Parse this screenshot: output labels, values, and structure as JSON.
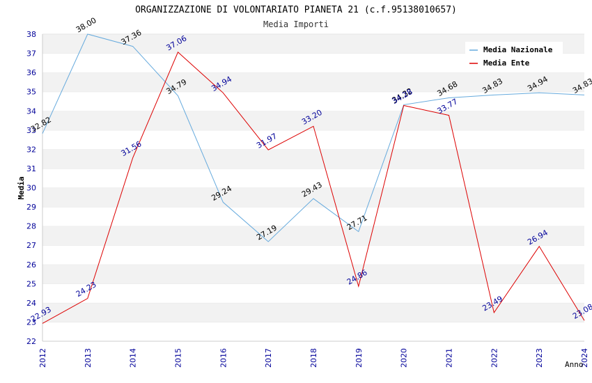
{
  "chart_data": {
    "type": "line",
    "title": "ORGANIZZAZIONE DI VOLONTARIATO PIANETA 21 (c.f.95138010657)",
    "subtitle": "Media Importi",
    "xlabel": "Anno",
    "ylabel": "Media",
    "ylim": [
      22,
      38
    ],
    "grid": true,
    "legend_position": "top-right",
    "categories": [
      "2012",
      "2013",
      "2014",
      "2015",
      "2016",
      "2017",
      "2018",
      "2019",
      "2020",
      "2021",
      "2022",
      "2023",
      "2024"
    ],
    "y_ticks": [
      "22",
      "23",
      "24",
      "25",
      "26",
      "27",
      "28",
      "29",
      "30",
      "31",
      "32",
      "33",
      "34",
      "35",
      "36",
      "37",
      "38"
    ],
    "series": [
      {
        "name": "Media Nazionale",
        "color": "#66aadd",
        "label_color": "#000000",
        "values": [
          32.82,
          38.0,
          37.36,
          34.79,
          29.24,
          27.19,
          29.43,
          27.71,
          34.32,
          34.68,
          34.83,
          34.94,
          34.83
        ],
        "labels": [
          "32.82",
          "38.00",
          "37.36",
          "34.79",
          "29.24",
          "27.19",
          "29.43",
          "27.71",
          "34.32",
          "34.68",
          "34.83",
          "34.94",
          "34.83"
        ]
      },
      {
        "name": "Media Ente",
        "color": "#dd0000",
        "label_color": "#000099",
        "values": [
          22.93,
          24.23,
          31.56,
          37.06,
          34.94,
          31.97,
          33.2,
          24.86,
          34.28,
          33.77,
          23.49,
          26.94,
          23.08
        ],
        "labels": [
          "22.93",
          "24.23",
          "31.56",
          "37.06",
          "34.94",
          "31.97",
          "33.20",
          "24.86",
          "34.28",
          "33.77",
          "23.49",
          "26.94",
          "23.08"
        ]
      }
    ]
  }
}
